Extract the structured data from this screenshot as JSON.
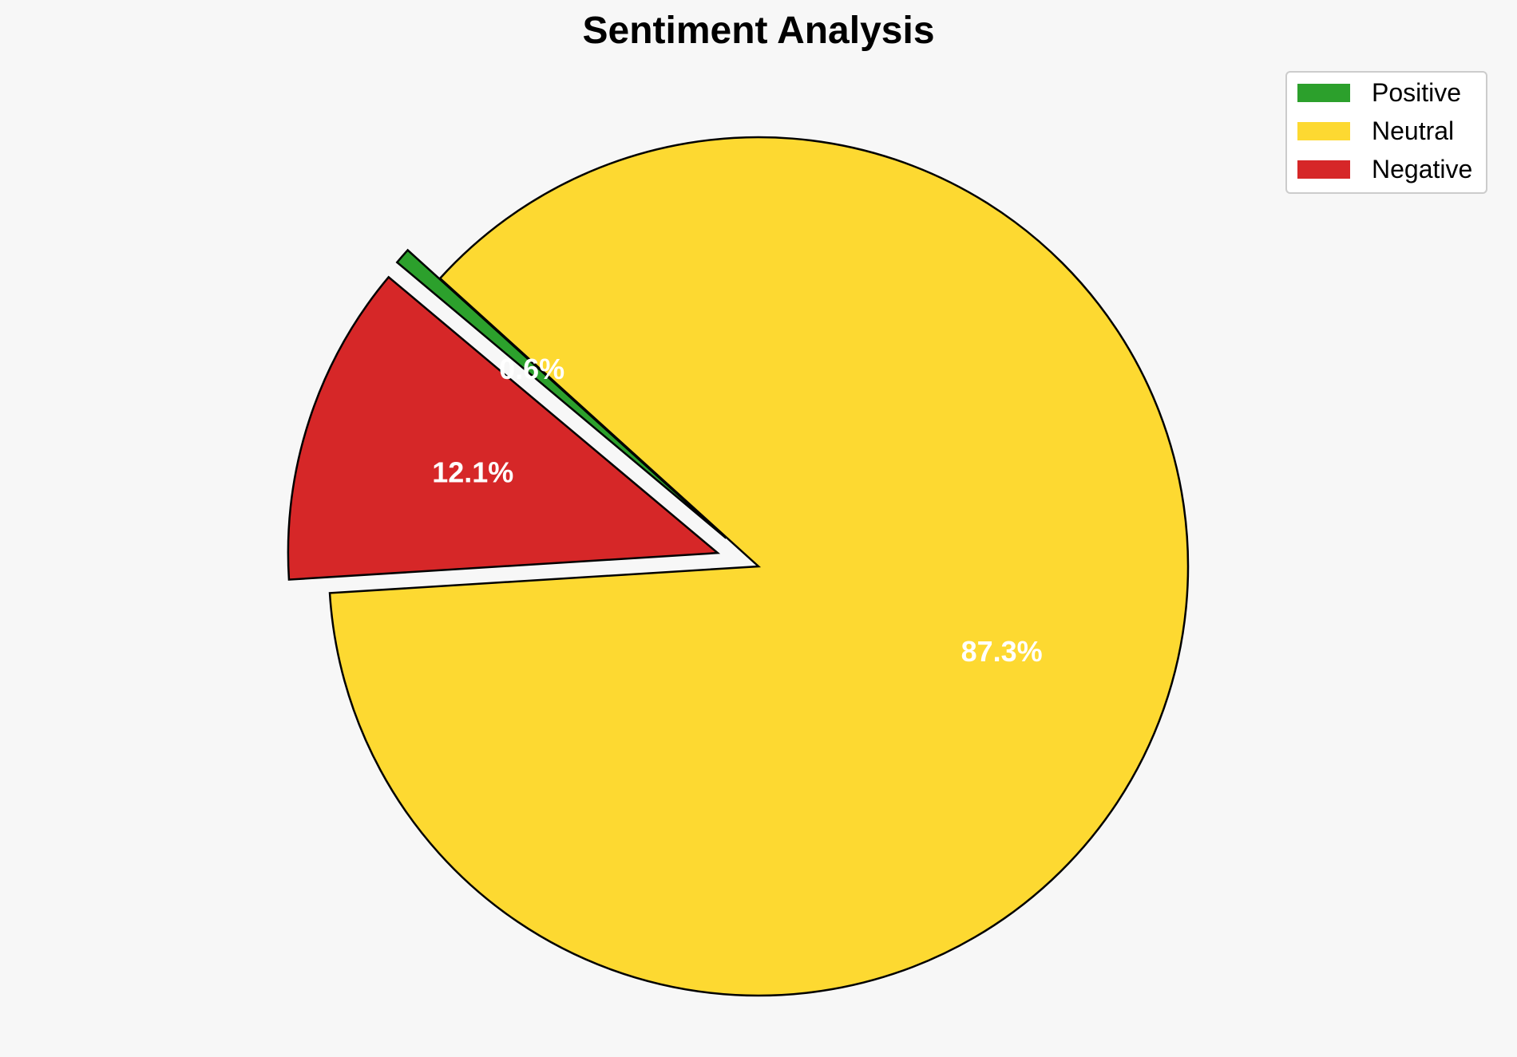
{
  "chart_data": {
    "type": "pie",
    "title": "Sentiment Analysis",
    "slices": [
      {
        "name": "Positive",
        "value": 0.6,
        "label": "0.6%",
        "color": "#2ca02c",
        "exploded": true
      },
      {
        "name": "Neutral",
        "value": 87.3,
        "label": "87.3%",
        "color": "#fdd931",
        "exploded": false
      },
      {
        "name": "Negative",
        "value": 12.1,
        "label": "12.1%",
        "color": "#d62728",
        "exploded": true
      }
    ],
    "start_angle_deg": 140,
    "direction": "clockwise",
    "legend": {
      "placement": "top-right",
      "entries": [
        "Positive",
        "Neutral",
        "Negative"
      ]
    }
  }
}
